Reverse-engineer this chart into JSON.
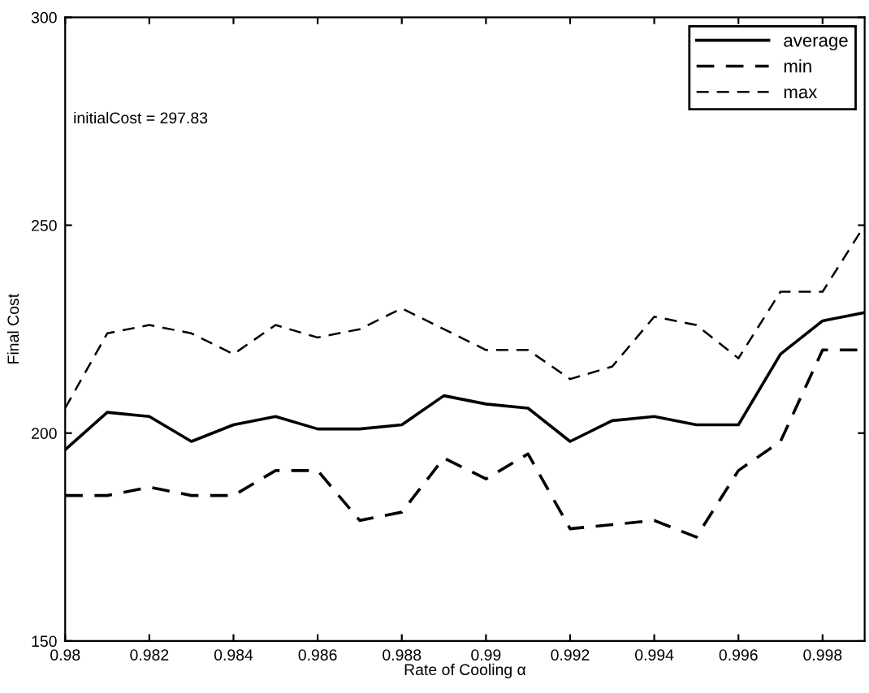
{
  "chart_data": {
    "type": "line",
    "xlabel": "Rate of Cooling α",
    "ylabel": "Final Cost",
    "annotations": [
      "initialCost = 297.83"
    ],
    "x": [
      0.98,
      0.981,
      0.982,
      0.983,
      0.984,
      0.985,
      0.986,
      0.987,
      0.988,
      0.989,
      0.99,
      0.991,
      0.992,
      0.993,
      0.994,
      0.995,
      0.996,
      0.997,
      0.998,
      0.999
    ],
    "series": [
      {
        "name": "average",
        "color": "#000000",
        "line_style": "solid",
        "values": [
          196,
          205,
          204,
          198,
          202,
          204,
          201,
          201,
          202,
          209,
          207,
          206,
          198,
          203,
          204,
          202,
          202,
          219,
          227,
          229
        ]
      },
      {
        "name": "min",
        "color": "#000000",
        "line_style": "dashed",
        "values": [
          185,
          185,
          187,
          185,
          185,
          191,
          191,
          179,
          181,
          194,
          189,
          195,
          177,
          178,
          179,
          175,
          191,
          198,
          220,
          220
        ]
      },
      {
        "name": "max",
        "color": "#000000",
        "line_style": "dashed",
        "values": [
          206,
          224,
          226,
          224,
          219,
          226,
          223,
          225,
          230,
          225,
          220,
          220,
          213,
          216,
          228,
          226,
          218,
          234,
          234,
          250
        ]
      }
    ],
    "xlim": [
      0.98,
      0.999
    ],
    "ylim": [
      150,
      300
    ],
    "xticks": [
      0.98,
      0.982,
      0.984,
      0.986,
      0.988,
      0.99,
      0.992,
      0.994,
      0.996,
      0.998
    ],
    "yticks": [
      150,
      200,
      250,
      300
    ],
    "grid": false,
    "legend": "top right",
    "marker": "none"
  }
}
